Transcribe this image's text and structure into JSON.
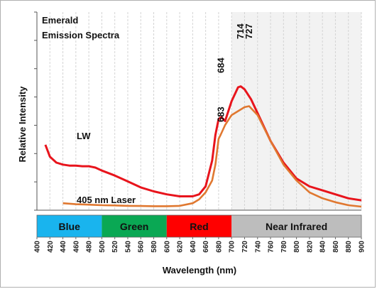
{
  "chart_data": {
    "type": "line",
    "title": "Emerald\nEmission Spectra",
    "xlabel": "Wavelength (nm)",
    "ylabel": "Relative Intensity",
    "xlim": [
      400,
      900
    ],
    "ylim": [
      0,
      1
    ],
    "x_ticks": [
      400,
      420,
      440,
      460,
      480,
      500,
      520,
      540,
      560,
      580,
      600,
      620,
      640,
      660,
      680,
      700,
      720,
      740,
      760,
      780,
      800,
      820,
      840,
      860,
      880,
      900
    ],
    "grid": "vertical",
    "series": [
      {
        "name": "LW",
        "color": "#e8141c",
        "x": [
          413,
          420,
          430,
          440,
          450,
          460,
          470,
          480,
          490,
          500,
          520,
          540,
          560,
          580,
          600,
          620,
          640,
          650,
          660,
          670,
          675,
          680,
          684,
          690,
          700,
          710,
          714,
          720,
          730,
          740,
          760,
          780,
          800,
          820,
          840,
          860,
          880,
          900
        ],
        "y": [
          0.33,
          0.27,
          0.24,
          0.23,
          0.225,
          0.225,
          0.222,
          0.222,
          0.215,
          0.2,
          0.175,
          0.145,
          0.115,
          0.095,
          0.08,
          0.07,
          0.07,
          0.08,
          0.12,
          0.25,
          0.38,
          0.46,
          0.47,
          0.45,
          0.55,
          0.62,
          0.625,
          0.61,
          0.56,
          0.49,
          0.35,
          0.24,
          0.16,
          0.12,
          0.1,
          0.08,
          0.06,
          0.05
        ]
      },
      {
        "name": "405 nm Laser",
        "color": "#e07830",
        "x": [
          440,
          460,
          480,
          500,
          520,
          540,
          560,
          580,
          600,
          620,
          640,
          650,
          660,
          670,
          675,
          680,
          683,
          690,
          700,
          710,
          720,
          727,
          740,
          760,
          780,
          800,
          820,
          840,
          860,
          880,
          900
        ],
        "y": [
          0.035,
          0.03,
          0.028,
          0.025,
          0.024,
          0.022,
          0.021,
          0.02,
          0.02,
          0.022,
          0.035,
          0.055,
          0.09,
          0.15,
          0.23,
          0.36,
          0.38,
          0.43,
          0.48,
          0.5,
          0.52,
          0.525,
          0.48,
          0.35,
          0.23,
          0.15,
          0.09,
          0.06,
          0.04,
          0.025,
          0.018
        ]
      }
    ],
    "annotations": [
      {
        "text": "684",
        "x": 684
      },
      {
        "text": "714",
        "x": 714
      },
      {
        "text": "727",
        "x": 727
      },
      {
        "text": "683",
        "x": 683
      }
    ],
    "bands": [
      {
        "label": "Blue",
        "from": 400,
        "to": 500,
        "color": "#19b4ee"
      },
      {
        "label": "Green",
        "from": 500,
        "to": 600,
        "color": "#0aa854"
      },
      {
        "label": "Red",
        "from": 600,
        "to": 700,
        "color": "#ff0000"
      },
      {
        "label": "Near Infrared",
        "from": 700,
        "to": 900,
        "color": "#bdbdbd"
      }
    ],
    "shade": {
      "from": 700,
      "to": 900,
      "color": "#f2f2f2"
    }
  }
}
